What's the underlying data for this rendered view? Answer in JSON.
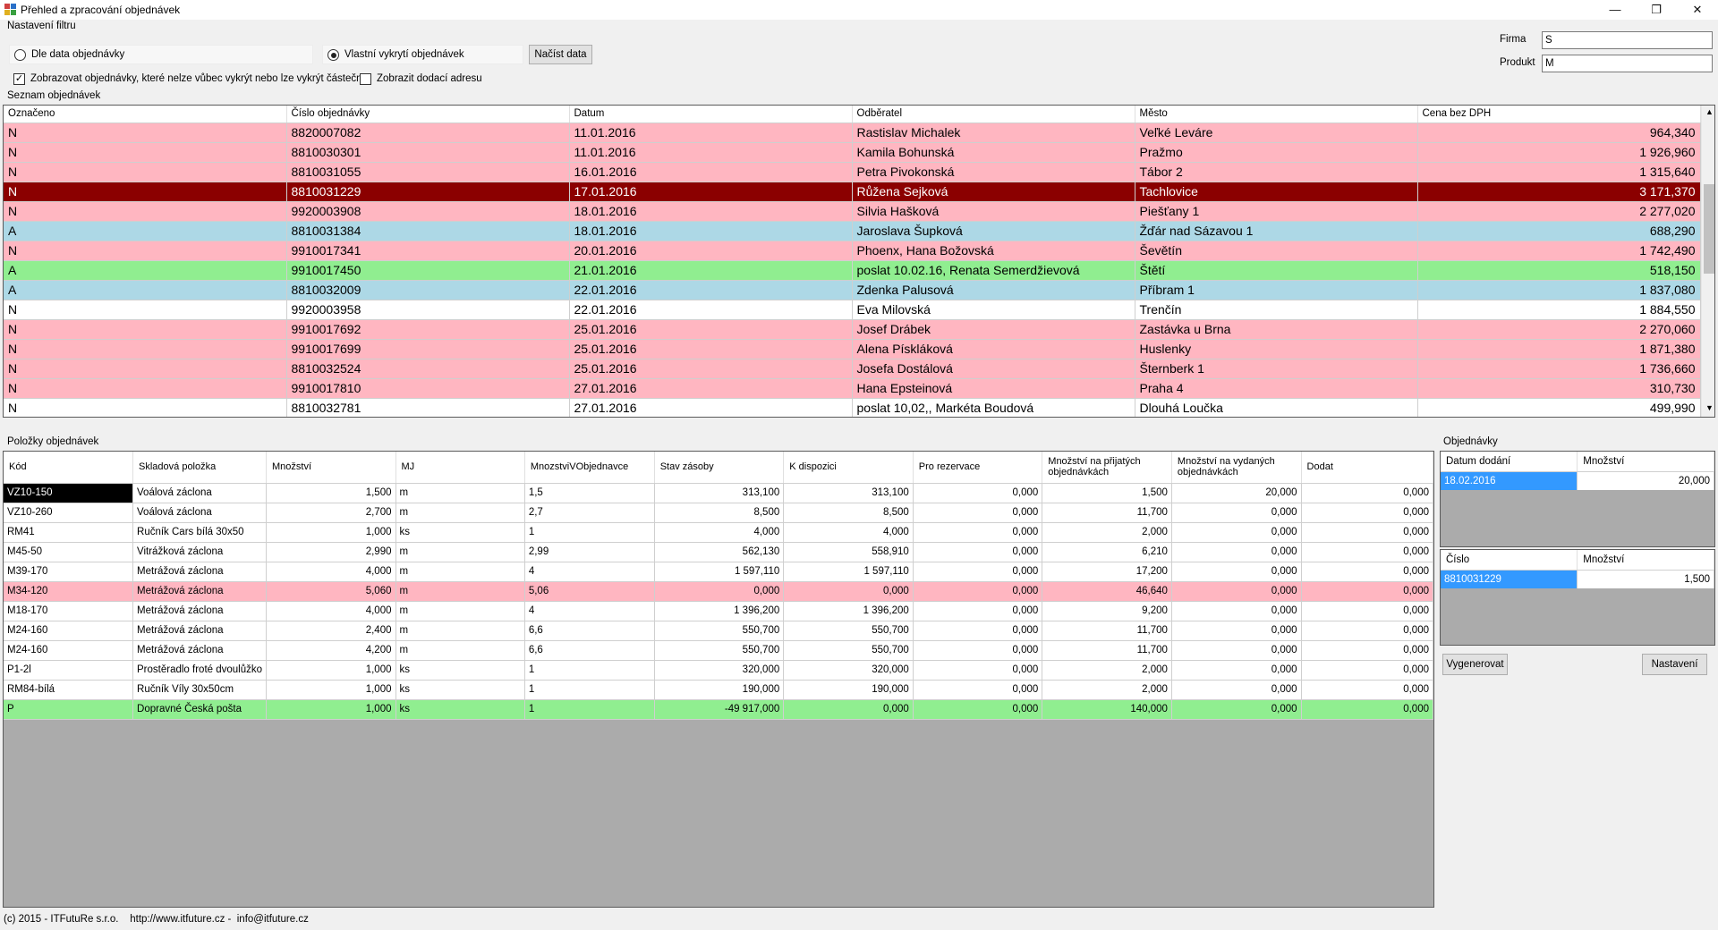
{
  "window": {
    "title": "Přehled a zpracování objednávek",
    "controls": {
      "minimize": "—",
      "maximize": "❐",
      "close": "✕"
    }
  },
  "filter": {
    "group_title": "Nastavení filtru",
    "radio_order_date": "Dle data objednávky",
    "radio_own_pick": "Vlastní vykrytí objednávek",
    "radio_selected": "own_pick",
    "load_button": "Načíst data",
    "chk_show_unpicked": "Zobrazovat objednávky, které nelze vůbec vykrýt nebo lze vykrýt částečně",
    "chk_show_unpicked_checked": true,
    "chk_delivery_address": "Zobrazit dodací adresu",
    "chk_delivery_address_checked": false,
    "firm_label": "Firma",
    "firm_value": "S",
    "product_label": "Produkt",
    "product_value": "M"
  },
  "orders": {
    "group_title": "Seznam objednávek",
    "columns": [
      "Označeno",
      "Číslo objednávky",
      "Datum",
      "Odběratel",
      "Město",
      "Cena bez DPH"
    ],
    "rows": [
      {
        "mark": "N",
        "number": "8820007082",
        "date": "11.01.2016",
        "customer": "Rastislav Michalek",
        "city": "Veľké Leváre",
        "price": "964,340",
        "color": "pink"
      },
      {
        "mark": "N",
        "number": "8810030301",
        "date": "11.01.2016",
        "customer": "Kamila Bohunská",
        "city": "Pražmo",
        "price": "1 926,960",
        "color": "pink"
      },
      {
        "mark": "N",
        "number": "8810031055",
        "date": "16.01.2016",
        "customer": "Petra Pivokonská",
        "city": "Tábor 2",
        "price": "1 315,640",
        "color": "pink"
      },
      {
        "mark": "N",
        "number": "8810031229",
        "date": "17.01.2016",
        "customer": "Růžena Sejková",
        "city": "Tachlovice",
        "price": "3 171,370",
        "color": "selected"
      },
      {
        "mark": "N",
        "number": "9920003908",
        "date": "18.01.2016",
        "customer": "Silvia Hašková",
        "city": "Piešťany 1",
        "price": "2 277,020",
        "color": "pink"
      },
      {
        "mark": "A",
        "number": "8810031384",
        "date": "18.01.2016",
        "customer": "Jaroslava Šupková",
        "city": "Žďár nad Sázavou 1",
        "price": "688,290",
        "color": "blue"
      },
      {
        "mark": "N",
        "number": "9910017341",
        "date": "20.01.2016",
        "customer": "Phoenx, Hana Božovská",
        "city": "Ševětín",
        "price": "1 742,490",
        "color": "pink"
      },
      {
        "mark": "A",
        "number": "9910017450",
        "date": "21.01.2016",
        "customer": "poslat 10.02.16, Renata Semerdžievová",
        "city": "Štětí",
        "price": "518,150",
        "color": "green"
      },
      {
        "mark": "A",
        "number": "8810032009",
        "date": "22.01.2016",
        "customer": "Zdenka Palusová",
        "city": "Příbram 1",
        "price": "1 837,080",
        "color": "blue"
      },
      {
        "mark": "N",
        "number": "9920003958",
        "date": "22.01.2016",
        "customer": "Eva Milovská",
        "city": "Trenčín",
        "price": "1 884,550",
        "color": "white"
      },
      {
        "mark": "N",
        "number": "9910017692",
        "date": "25.01.2016",
        "customer": "Josef Drábek",
        "city": "Zastávka u Brna",
        "price": "2 270,060",
        "color": "pink"
      },
      {
        "mark": "N",
        "number": "9910017699",
        "date": "25.01.2016",
        "customer": "Alena Pískláková",
        "city": "Huslenky",
        "price": "1 871,380",
        "color": "pink"
      },
      {
        "mark": "N",
        "number": "8810032524",
        "date": "25.01.2016",
        "customer": "Josefa Dostálová",
        "city": "Šternberk 1",
        "price": "1 736,660",
        "color": "pink"
      },
      {
        "mark": "N",
        "number": "9910017810",
        "date": "27.01.2016",
        "customer": "Hana Epsteinová",
        "city": "Praha 4",
        "price": "310,730",
        "color": "pink"
      },
      {
        "mark": "N",
        "number": "8810032781",
        "date": "27.01.2016",
        "customer": "poslat 10,02,, Markéta Boudová",
        "city": "Dlouhá Loučka",
        "price": "499,990",
        "color": "white"
      }
    ]
  },
  "items": {
    "group_title": "Položky objednávek",
    "columns": [
      "Kód",
      "Skladová položka",
      "Množství",
      "MJ",
      "MnozstviVObjednavce",
      "Stav zásoby",
      "K dispozici",
      "Pro rezervace",
      "Množství na přijatých objednávkách",
      "Množství na vydaných objednávkách",
      "Dodat"
    ],
    "rows": [
      {
        "code": "VZ10-150",
        "name": "Voálová záclona",
        "qty": "1,500",
        "unit": "m",
        "qty_order": "1,5",
        "stock": "313,100",
        "available": "313,100",
        "reserve": "0,000",
        "received": "1,500",
        "issued": "20,000",
        "deliver": "0,000",
        "color": "white",
        "code_selected": true
      },
      {
        "code": "VZ10-260",
        "name": "Voálová záclona",
        "qty": "2,700",
        "unit": "m",
        "qty_order": "2,7",
        "stock": "8,500",
        "available": "8,500",
        "reserve": "0,000",
        "received": "11,700",
        "issued": "0,000",
        "deliver": "0,000",
        "color": "white"
      },
      {
        "code": "RM41",
        "name": "Ručník Cars bílá 30x50",
        "qty": "1,000",
        "unit": "ks",
        "qty_order": "1",
        "stock": "4,000",
        "available": "4,000",
        "reserve": "0,000",
        "received": "2,000",
        "issued": "0,000",
        "deliver": "0,000",
        "color": "white"
      },
      {
        "code": "M45-50",
        "name": "Vitrážková záclona",
        "qty": "2,990",
        "unit": "m",
        "qty_order": "2,99",
        "stock": "562,130",
        "available": "558,910",
        "reserve": "0,000",
        "received": "6,210",
        "issued": "0,000",
        "deliver": "0,000",
        "color": "white"
      },
      {
        "code": "M39-170",
        "name": "Metrážová záclona",
        "qty": "4,000",
        "unit": "m",
        "qty_order": "4",
        "stock": "1 597,110",
        "available": "1 597,110",
        "reserve": "0,000",
        "received": "17,200",
        "issued": "0,000",
        "deliver": "0,000",
        "color": "white"
      },
      {
        "code": "M34-120",
        "name": "Metrážová záclona",
        "qty": "5,060",
        "unit": "m",
        "qty_order": "5,06",
        "stock": "0,000",
        "available": "0,000",
        "reserve": "0,000",
        "received": "46,640",
        "issued": "0,000",
        "deliver": "0,000",
        "color": "pink"
      },
      {
        "code": "M18-170",
        "name": "Metrážová záclona",
        "qty": "4,000",
        "unit": "m",
        "qty_order": "4",
        "stock": "1 396,200",
        "available": "1 396,200",
        "reserve": "0,000",
        "received": "9,200",
        "issued": "0,000",
        "deliver": "0,000",
        "color": "white"
      },
      {
        "code": "M24-160",
        "name": "Metrážová záclona",
        "qty": "2,400",
        "unit": "m",
        "qty_order": "6,6",
        "stock": "550,700",
        "available": "550,700",
        "reserve": "0,000",
        "received": "11,700",
        "issued": "0,000",
        "deliver": "0,000",
        "color": "white"
      },
      {
        "code": "M24-160",
        "name": "Metrážová záclona",
        "qty": "4,200",
        "unit": "m",
        "qty_order": "6,6",
        "stock": "550,700",
        "available": "550,700",
        "reserve": "0,000",
        "received": "11,700",
        "issued": "0,000",
        "deliver": "0,000",
        "color": "white"
      },
      {
        "code": "P1-2l",
        "name": "Prostěradlo froté dvoulůžko",
        "qty": "1,000",
        "unit": "ks",
        "qty_order": "1",
        "stock": "320,000",
        "available": "320,000",
        "reserve": "0,000",
        "received": "2,000",
        "issued": "0,000",
        "deliver": "0,000",
        "color": "white"
      },
      {
        "code": "RM84-bílá",
        "name": "Ručník Víly 30x50cm",
        "qty": "1,000",
        "unit": "ks",
        "qty_order": "1",
        "stock": "190,000",
        "available": "190,000",
        "reserve": "0,000",
        "received": "2,000",
        "issued": "0,000",
        "deliver": "0,000",
        "color": "white"
      },
      {
        "code": "P",
        "name": "Dopravné Česká pošta",
        "qty": "1,000",
        "unit": "ks",
        "qty_order": "1",
        "stock": "-49 917,000",
        "available": "0,000",
        "reserve": "0,000",
        "received": "140,000",
        "issued": "0,000",
        "deliver": "0,000",
        "color": "green"
      }
    ]
  },
  "orders_panel": {
    "group_title": "Objednávky",
    "delivery": {
      "columns": [
        "Datum dodání",
        "Množství"
      ],
      "rows": [
        {
          "date": "18.02.2016",
          "qty": "20,000"
        }
      ]
    },
    "numbers": {
      "columns": [
        "Číslo",
        "Množství"
      ],
      "rows": [
        {
          "number": "8810031229",
          "qty": "1,500"
        }
      ]
    },
    "generate_button": "Vygenerovat",
    "settings_button": "Nastavení"
  },
  "footer": {
    "text": "(c) 2015 - ITFutuRe s.r.o.    http://www.itfuture.cz -  info@itfuture.cz"
  },
  "colors": {
    "pink": "#ffb6c1",
    "blue": "#add8e6",
    "green": "#90ee90",
    "selected_bg": "#8b0000",
    "selection_blue": "#3399ff"
  },
  "icons": {
    "app": "app-grid-icon",
    "scroll_up": "▲",
    "scroll_down": "▼"
  }
}
